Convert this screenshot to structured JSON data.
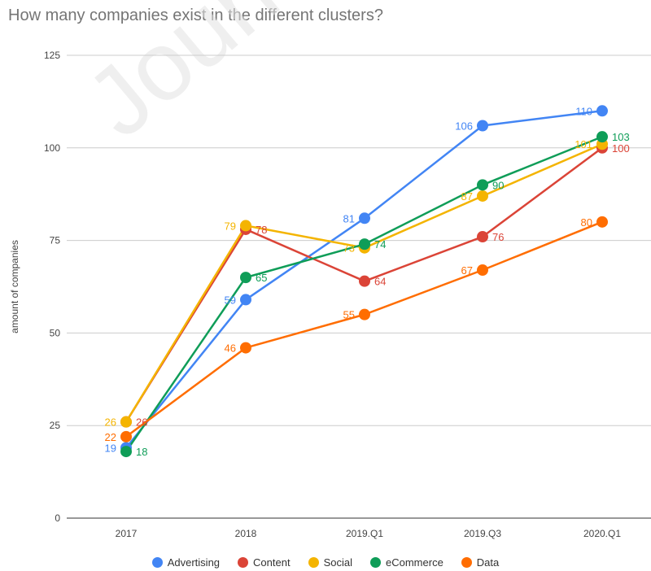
{
  "chart_data": {
    "type": "line",
    "title": "How many companies exist in the different clusters?",
    "ylabel": "amount of companies",
    "xlabel": "",
    "categories": [
      "2017",
      "2018",
      "2019.Q1",
      "2019.Q3",
      "2020.Q1"
    ],
    "yticks": [
      0,
      25,
      50,
      75,
      100,
      125
    ],
    "ylim": [
      0,
      125
    ],
    "grid": true,
    "legend_position": "bottom",
    "series": [
      {
        "name": "Advertising",
        "color": "#4285f4",
        "values": [
          19,
          59,
          81,
          106,
          110
        ]
      },
      {
        "name": "Content",
        "color": "#db4437",
        "values": [
          26,
          78,
          64,
          76,
          100
        ]
      },
      {
        "name": "Social",
        "color": "#f4b400",
        "values": [
          26,
          79,
          73,
          87,
          101
        ]
      },
      {
        "name": "eCommerce",
        "color": "#0f9d58",
        "values": [
          18,
          65,
          74,
          90,
          103
        ]
      },
      {
        "name": "Data",
        "color": "#ff6d01",
        "values": [
          22,
          46,
          55,
          67,
          80
        ]
      }
    ]
  },
  "watermark": "Journal"
}
